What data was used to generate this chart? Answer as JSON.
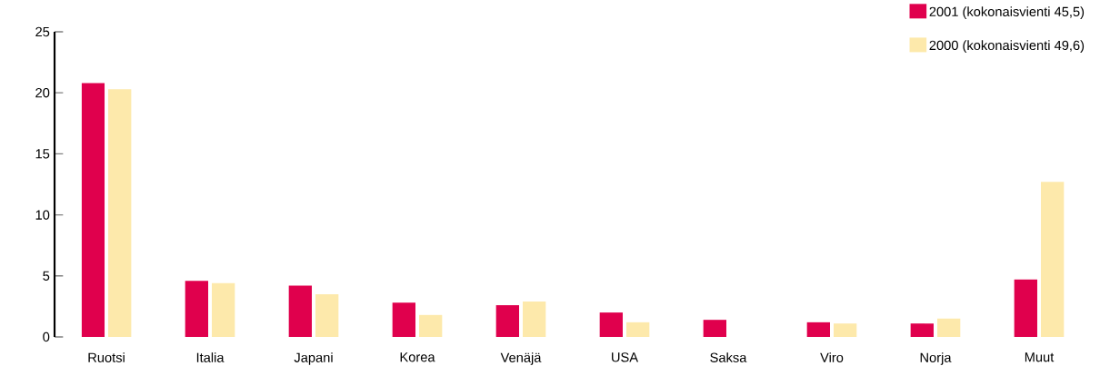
{
  "chart_data": {
    "type": "bar",
    "categories": [
      "Ruotsi",
      "Italia",
      "Japani",
      "Korea",
      "Venäjä",
      "USA",
      "Saksa",
      "Viro",
      "Norja",
      "Muut"
    ],
    "series": [
      {
        "name": "2001 (kokonaisvienti 45,5)",
        "color": "#e0004d",
        "values": [
          20.8,
          4.6,
          4.2,
          2.8,
          2.6,
          2.0,
          1.4,
          1.2,
          1.1,
          4.7
        ]
      },
      {
        "name": "2000 (kokonaisvienti 49,6)",
        "color": "#fde9ab",
        "values": [
          20.3,
          4.4,
          3.5,
          1.8,
          2.9,
          1.2,
          null,
          1.1,
          1.5,
          12.7
        ]
      }
    ],
    "ylim": [
      0,
      25
    ],
    "yticks": [
      0,
      5,
      10,
      15,
      20,
      25
    ],
    "grid": false,
    "legend": "top right"
  }
}
